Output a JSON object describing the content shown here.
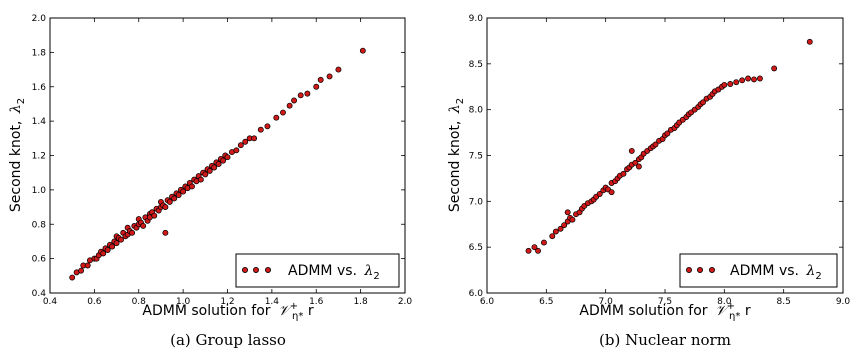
{
  "colors": {
    "marker_fill": "#d11919",
    "marker_edge": "#000000",
    "axis": "#000000",
    "background": "#ffffff"
  },
  "chart_data": [
    {
      "type": "scatter",
      "caption": "(a) Group lasso",
      "xlabel": "ADMM solution for",
      "xlabel_math": "𝒱",
      "xlabel_math_sup": "+",
      "xlabel_math_sub": "η*",
      "xlabel_tail": " r",
      "ylabel": "Second knot,",
      "ylabel_math": "λ",
      "ylabel_math_sub": "2",
      "xlim": [
        0.4,
        2.0
      ],
      "ylim": [
        0.4,
        2.0
      ],
      "xticks": [
        "0.4",
        "0.6",
        "0.8",
        "1.0",
        "1.2",
        "1.4",
        "1.6",
        "1.8",
        "2.0"
      ],
      "yticks": [
        "0.4",
        "0.6",
        "0.8",
        "1.0",
        "1.2",
        "1.4",
        "1.6",
        "1.8",
        "2.0"
      ],
      "legend": {
        "text": "ADMM vs.",
        "math": "λ",
        "math_sub": "2",
        "position": "lower-right"
      },
      "grid": false,
      "points": [
        [
          0.5,
          0.49
        ],
        [
          0.52,
          0.52
        ],
        [
          0.54,
          0.53
        ],
        [
          0.55,
          0.56
        ],
        [
          0.57,
          0.56
        ],
        [
          0.58,
          0.59
        ],
        [
          0.6,
          0.6
        ],
        [
          0.61,
          0.6
        ],
        [
          0.62,
          0.62
        ],
        [
          0.63,
          0.64
        ],
        [
          0.64,
          0.63
        ],
        [
          0.65,
          0.66
        ],
        [
          0.66,
          0.65
        ],
        [
          0.67,
          0.68
        ],
        [
          0.68,
          0.67
        ],
        [
          0.69,
          0.7
        ],
        [
          0.7,
          0.69
        ],
        [
          0.7,
          0.73
        ],
        [
          0.71,
          0.72
        ],
        [
          0.72,
          0.71
        ],
        [
          0.73,
          0.75
        ],
        [
          0.74,
          0.73
        ],
        [
          0.75,
          0.74
        ],
        [
          0.75,
          0.78
        ],
        [
          0.76,
          0.76
        ],
        [
          0.77,
          0.75
        ],
        [
          0.78,
          0.79
        ],
        [
          0.79,
          0.78
        ],
        [
          0.8,
          0.8
        ],
        [
          0.8,
          0.83
        ],
        [
          0.81,
          0.81
        ],
        [
          0.82,
          0.79
        ],
        [
          0.83,
          0.84
        ],
        [
          0.84,
          0.82
        ],
        [
          0.85,
          0.86
        ],
        [
          0.85,
          0.84
        ],
        [
          0.86,
          0.87
        ],
        [
          0.87,
          0.85
        ],
        [
          0.88,
          0.89
        ],
        [
          0.89,
          0.88
        ],
        [
          0.9,
          0.9
        ],
        [
          0.9,
          0.93
        ],
        [
          0.91,
          0.91
        ],
        [
          0.92,
          0.9
        ],
        [
          0.92,
          0.75
        ],
        [
          0.93,
          0.94
        ],
        [
          0.94,
          0.93
        ],
        [
          0.95,
          0.96
        ],
        [
          0.96,
          0.95
        ],
        [
          0.97,
          0.98
        ],
        [
          0.98,
          0.97
        ],
        [
          0.99,
          1.0
        ],
        [
          1.0,
          0.99
        ],
        [
          1.01,
          1.02
        ],
        [
          1.02,
          1.01
        ],
        [
          1.03,
          1.04
        ],
        [
          1.04,
          1.02
        ],
        [
          1.05,
          1.06
        ],
        [
          1.06,
          1.05
        ],
        [
          1.07,
          1.08
        ],
        [
          1.08,
          1.06
        ],
        [
          1.09,
          1.1
        ],
        [
          1.1,
          1.09
        ],
        [
          1.11,
          1.12
        ],
        [
          1.12,
          1.11
        ],
        [
          1.13,
          1.14
        ],
        [
          1.14,
          1.13
        ],
        [
          1.15,
          1.16
        ],
        [
          1.16,
          1.15
        ],
        [
          1.17,
          1.18
        ],
        [
          1.18,
          1.17
        ],
        [
          1.19,
          1.2
        ],
        [
          1.2,
          1.19
        ],
        [
          1.22,
          1.22
        ],
        [
          1.24,
          1.23
        ],
        [
          1.26,
          1.26
        ],
        [
          1.28,
          1.28
        ],
        [
          1.3,
          1.3
        ],
        [
          1.32,
          1.3
        ],
        [
          1.35,
          1.35
        ],
        [
          1.38,
          1.37
        ],
        [
          1.42,
          1.42
        ],
        [
          1.45,
          1.45
        ],
        [
          1.48,
          1.49
        ],
        [
          1.5,
          1.52
        ],
        [
          1.53,
          1.55
        ],
        [
          1.56,
          1.56
        ],
        [
          1.6,
          1.6
        ],
        [
          1.62,
          1.64
        ],
        [
          1.66,
          1.66
        ],
        [
          1.7,
          1.7
        ],
        [
          1.81,
          1.81
        ]
      ]
    },
    {
      "type": "scatter",
      "caption": "(b) Nuclear norm",
      "xlabel": "ADMM solution for",
      "xlabel_math": "𝒱",
      "xlabel_math_sup": "+",
      "xlabel_math_sub": "η*",
      "xlabel_tail": " r",
      "ylabel": "Second knot,",
      "ylabel_math": "λ",
      "ylabel_math_sub": "2",
      "xlim": [
        6.0,
        9.0
      ],
      "ylim": [
        6.0,
        9.0
      ],
      "xticks": [
        "6.0",
        "6.5",
        "7.0",
        "7.5",
        "8.0",
        "8.5",
        "9.0"
      ],
      "yticks": [
        "6.0",
        "6.5",
        "7.0",
        "7.5",
        "8.0",
        "8.5",
        "9.0"
      ],
      "legend": {
        "text": "ADMM vs.",
        "math": "λ",
        "math_sub": "2",
        "position": "lower-right"
      },
      "grid": false,
      "points": [
        [
          6.35,
          6.46
        ],
        [
          6.4,
          6.5
        ],
        [
          6.43,
          6.46
        ],
        [
          6.48,
          6.55
        ],
        [
          6.55,
          6.62
        ],
        [
          6.58,
          6.67
        ],
        [
          6.62,
          6.7
        ],
        [
          6.65,
          6.74
        ],
        [
          6.68,
          6.78
        ],
        [
          6.7,
          6.82
        ],
        [
          6.72,
          6.8
        ],
        [
          6.75,
          6.86
        ],
        [
          6.78,
          6.88
        ],
        [
          6.8,
          6.92
        ],
        [
          6.82,
          6.95
        ],
        [
          6.85,
          6.98
        ],
        [
          6.88,
          7.0
        ],
        [
          6.9,
          7.02
        ],
        [
          6.92,
          7.05
        ],
        [
          6.95,
          7.08
        ],
        [
          6.98,
          7.12
        ],
        [
          7.0,
          7.15
        ],
        [
          7.02,
          7.13
        ],
        [
          7.05,
          7.2
        ],
        [
          7.08,
          7.22
        ],
        [
          7.1,
          7.25
        ],
        [
          7.12,
          7.28
        ],
        [
          7.15,
          7.3
        ],
        [
          7.18,
          7.35
        ],
        [
          7.2,
          7.37
        ],
        [
          7.22,
          7.4
        ],
        [
          7.25,
          7.42
        ],
        [
          7.28,
          7.46
        ],
        [
          7.3,
          7.48
        ],
        [
          7.32,
          7.52
        ],
        [
          7.35,
          7.55
        ],
        [
          7.38,
          7.58
        ],
        [
          7.4,
          7.6
        ],
        [
          7.42,
          7.62
        ],
        [
          7.45,
          7.66
        ],
        [
          7.48,
          7.68
        ],
        [
          7.5,
          7.72
        ],
        [
          7.52,
          7.74
        ],
        [
          7.55,
          7.78
        ],
        [
          7.58,
          7.8
        ],
        [
          7.6,
          7.83
        ],
        [
          7.62,
          7.86
        ],
        [
          7.65,
          7.89
        ],
        [
          7.68,
          7.92
        ],
        [
          7.7,
          7.95
        ],
        [
          7.72,
          7.97
        ],
        [
          7.75,
          8.0
        ],
        [
          7.78,
          8.03
        ],
        [
          7.8,
          8.06
        ],
        [
          7.82,
          8.08
        ],
        [
          7.85,
          8.12
        ],
        [
          7.88,
          8.14
        ],
        [
          7.9,
          8.17
        ],
        [
          7.92,
          8.2
        ],
        [
          7.95,
          8.22
        ],
        [
          7.98,
          8.25
        ],
        [
          8.0,
          8.27
        ],
        [
          8.05,
          8.28
        ],
        [
          8.1,
          8.3
        ],
        [
          8.15,
          8.32
        ],
        [
          8.2,
          8.34
        ],
        [
          8.25,
          8.33
        ],
        [
          8.3,
          8.34
        ],
        [
          8.42,
          8.45
        ],
        [
          8.72,
          8.74
        ],
        [
          6.68,
          6.88
        ],
        [
          7.22,
          7.55
        ],
        [
          7.05,
          7.1
        ],
        [
          7.28,
          7.38
        ]
      ]
    }
  ]
}
